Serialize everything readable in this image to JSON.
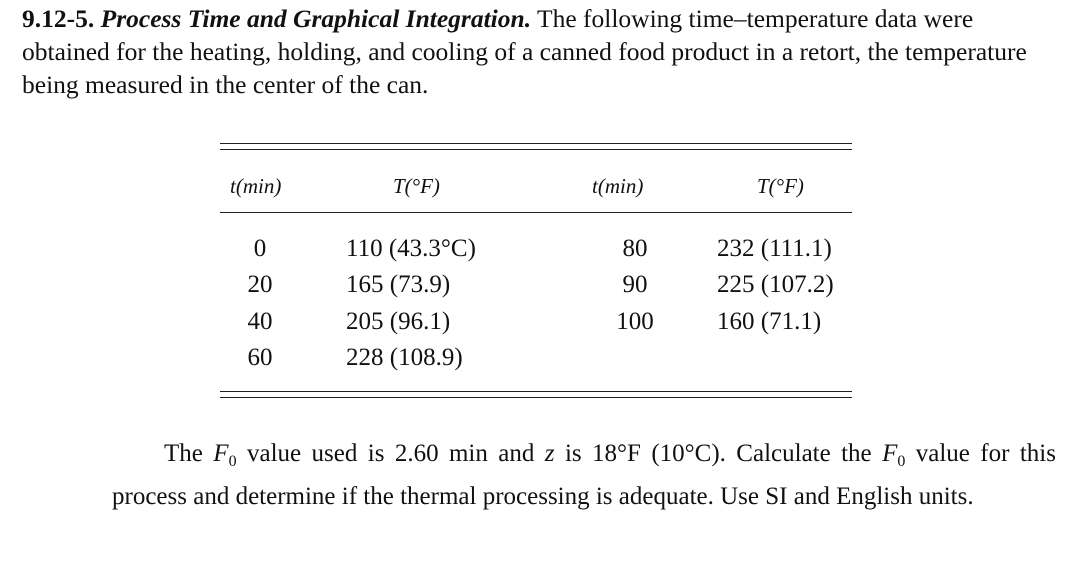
{
  "problem": {
    "number": "9.12-5.",
    "title": "Process Time and Graphical Integration.",
    "intro": "The following time–temperature data were obtained for the heating, holding, and cooling of a canned food product in a retort, the temperature being measured in the center of the can."
  },
  "table": {
    "headers": {
      "t1": "t(min)",
      "T1": "T(°F)",
      "t2": "t(min)",
      "T2": "T(°F)"
    },
    "left_t": [
      "0",
      "20",
      "40",
      "60"
    ],
    "left_T": [
      "110 (43.3°C)",
      "165 (73.9)",
      "205 (96.1)",
      "228 (108.9)"
    ],
    "right_t": [
      "80",
      "90",
      "100"
    ],
    "right_T": [
      "232 (111.1)",
      "225 (107.2)",
      "160 (71.1)"
    ]
  },
  "footer": {
    "part1": "The ",
    "F_symbol": "F",
    "F_sub": "0",
    "part2": " value used is 2.60 min and ",
    "z_symbol": "z",
    "part3": " is 18°F (10°C). Calculate the ",
    "part4": " value for this process and determine if the thermal processing is adequate. Use SI and English units."
  }
}
